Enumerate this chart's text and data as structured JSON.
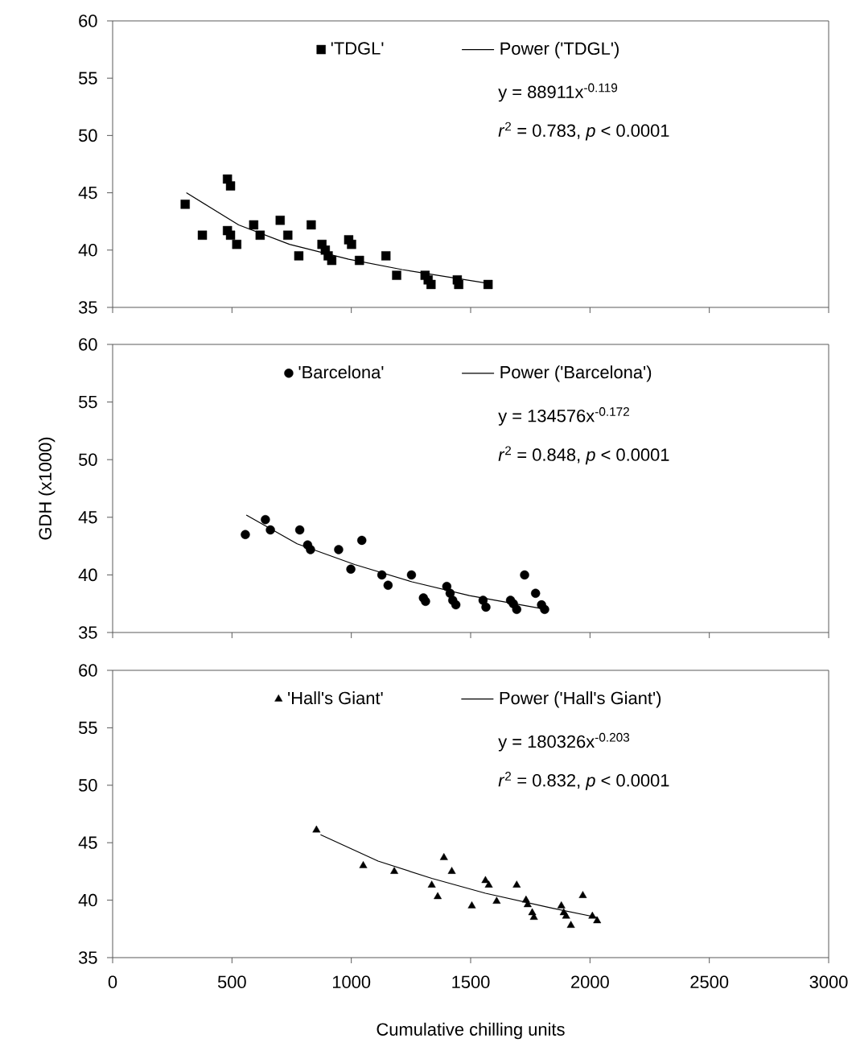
{
  "chart_data": [
    {
      "type": "scatter",
      "legend": "top",
      "tick_labels": "y",
      "xlim": [
        0,
        3000
      ],
      "xticks": [
        0,
        500,
        1000,
        1500,
        2000,
        2500,
        3000
      ],
      "ylim": [
        35,
        60
      ],
      "yticks": [
        35,
        40,
        45,
        50,
        55,
        60
      ],
      "annotations": [
        "y = 88911x$^{-0.119}$",
        "*r*$^{2}$ = 0.783, *p* < 0.0001"
      ],
      "series": [
        {
          "name": "'TDGL'",
          "marker": "square",
          "color": "#000000",
          "x": [
            304,
            376,
            481,
            494,
            481,
            494,
            520,
            591,
            618,
            702,
            734,
            780,
            832,
            877,
            891,
            903,
            918,
            989,
            1001,
            1034,
            1145,
            1190,
            1309,
            1322,
            1334,
            1444,
            1450,
            1573
          ],
          "values": [
            44.0,
            41.3,
            46.2,
            45.6,
            41.7,
            41.3,
            40.5,
            42.2,
            41.3,
            42.6,
            41.3,
            39.5,
            42.2,
            40.5,
            40.0,
            39.5,
            39.1,
            40.9,
            40.5,
            39.1,
            39.5,
            37.8,
            37.8,
            37.4,
            37.0,
            37.4,
            37.0,
            37.0
          ]
        },
        {
          "name": "Power ('TDGL')",
          "type": "line",
          "color": "#000000",
          "x": [
            309,
            528,
            741,
            989,
            1213,
            1573
          ],
          "values": [
            45.0,
            42.2,
            40.5,
            39.2,
            38.3,
            37.1
          ]
        }
      ]
    },
    {
      "type": "scatter",
      "legend": "top",
      "tick_labels": "y",
      "ylabel": "GDH (x1000)",
      "xlim": [
        0,
        3000
      ],
      "xticks": [
        0,
        500,
        1000,
        1500,
        2000,
        2500,
        3000
      ],
      "ylim": [
        35,
        60
      ],
      "yticks": [
        35,
        40,
        45,
        50,
        55,
        60
      ],
      "annotations": [
        "y = 134576x$^{-0.172}$",
        "*r*$^{2}$ = 0.848, *p* < 0.0001"
      ],
      "series": [
        {
          "name": "'Barcelona'",
          "marker": "circle",
          "color": "#000000",
          "x": [
            556,
            640,
            661,
            784,
            817,
            829,
            947,
            998,
            1044,
            1128,
            1154,
            1252,
            1302,
            1311,
            1400,
            1414,
            1425,
            1438,
            1552,
            1564,
            1667,
            1679,
            1693,
            1726,
            1772,
            1797,
            1810
          ],
          "values": [
            43.5,
            44.8,
            43.9,
            43.9,
            42.6,
            42.2,
            42.2,
            40.5,
            43.0,
            40.0,
            39.1,
            40.0,
            38.0,
            37.7,
            39.0,
            38.4,
            37.8,
            37.4,
            37.8,
            37.2,
            37.8,
            37.5,
            37.0,
            40.0,
            38.4,
            37.4,
            37.0
          ]
        },
        {
          "name": "Power ('Barcelona')",
          "type": "line",
          "color": "#000000",
          "x": [
            560,
            773,
            1014,
            1254,
            1495,
            1790
          ],
          "values": [
            45.2,
            42.7,
            40.9,
            39.4,
            38.2,
            37.1
          ]
        }
      ]
    },
    {
      "type": "scatter",
      "legend": "top",
      "xlabel": "Cumulative chilling units",
      "xlim": [
        0,
        3000
      ],
      "xticks": [
        0,
        500,
        1000,
        1500,
        2000,
        2500,
        3000
      ],
      "ylim": [
        35,
        60
      ],
      "yticks": [
        35,
        40,
        45,
        50,
        55,
        60
      ],
      "annotations": [
        "y = 180326x$^{-0.203}$",
        "*r*$^{2}$  = 0.832, *p* < 0.0001"
      ],
      "series": [
        {
          "name": "'Hall's Giant'",
          "marker": "triangle",
          "color": "#000000",
          "x": [
            854,
            1050,
            1180,
            1388,
            1421,
            1337,
            1362,
            1505,
            1562,
            1576,
            1609,
            1693,
            1732,
            1739,
            1758,
            1765,
            1880,
            1890,
            1900,
            1920,
            1970,
            2010,
            2030
          ],
          "values": [
            46.1,
            43.0,
            42.5,
            43.7,
            42.5,
            41.3,
            40.3,
            39.5,
            41.7,
            41.3,
            39.9,
            41.3,
            40.0,
            39.6,
            38.9,
            38.5,
            39.5,
            38.9,
            38.6,
            37.8,
            40.4,
            38.6,
            38.2
          ]
        },
        {
          "name": "Power ('Hall's Giant')",
          "type": "line",
          "color": "#000000",
          "x": [
            871,
            1112,
            1337,
            1562,
            1843,
            2030
          ],
          "values": [
            45.7,
            43.4,
            41.9,
            40.6,
            39.3,
            38.5
          ]
        }
      ]
    }
  ]
}
